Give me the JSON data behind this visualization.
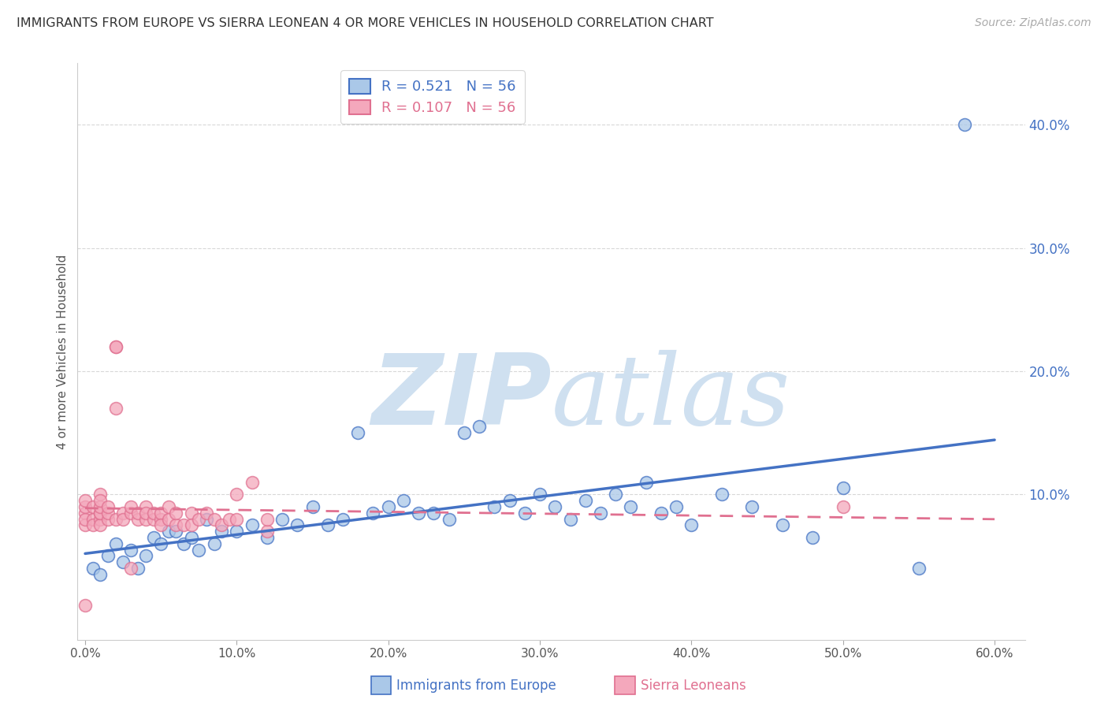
{
  "title": "IMMIGRANTS FROM EUROPE VS SIERRA LEONEAN 4 OR MORE VEHICLES IN HOUSEHOLD CORRELATION CHART",
  "source": "Source: ZipAtlas.com",
  "ylabel": "4 or more Vehicles in Household",
  "legend_label_blue": "Immigrants from Europe",
  "legend_label_pink": "Sierra Leoneans",
  "R_blue": 0.521,
  "R_pink": 0.107,
  "N_blue": 56,
  "N_pink": 56,
  "xlim": [
    -0.005,
    0.62
  ],
  "ylim": [
    -0.018,
    0.45
  ],
  "xtick_vals": [
    0.0,
    0.1,
    0.2,
    0.3,
    0.4,
    0.5,
    0.6
  ],
  "xtick_labels": [
    "0.0%",
    "10.0%",
    "20.0%",
    "30.0%",
    "40.0%",
    "50.0%",
    "60.0%"
  ],
  "ytick_vals_right": [
    0.1,
    0.2,
    0.3,
    0.4
  ],
  "ytick_labels_right": [
    "10.0%",
    "20.0%",
    "30.0%",
    "40.0%"
  ],
  "color_blue": "#aac8e8",
  "color_blue_line": "#4472c4",
  "color_blue_dark": "#4472c4",
  "color_pink": "#f4a8bc",
  "color_pink_line": "#e07090",
  "color_pink_dark": "#e07090",
  "watermark_color": "#cfe0f0",
  "background_color": "#ffffff",
  "grid_color": "#d8d8d8",
  "blue_scatter_x": [
    0.005,
    0.01,
    0.015,
    0.02,
    0.025,
    0.03,
    0.035,
    0.04,
    0.045,
    0.05,
    0.055,
    0.06,
    0.065,
    0.07,
    0.075,
    0.08,
    0.085,
    0.09,
    0.1,
    0.11,
    0.12,
    0.13,
    0.14,
    0.15,
    0.16,
    0.17,
    0.18,
    0.19,
    0.2,
    0.21,
    0.22,
    0.23,
    0.24,
    0.25,
    0.26,
    0.27,
    0.28,
    0.29,
    0.3,
    0.31,
    0.32,
    0.33,
    0.34,
    0.35,
    0.36,
    0.37,
    0.38,
    0.39,
    0.4,
    0.42,
    0.44,
    0.46,
    0.48,
    0.5,
    0.55,
    0.58
  ],
  "blue_scatter_y": [
    0.04,
    0.035,
    0.05,
    0.06,
    0.045,
    0.055,
    0.04,
    0.05,
    0.065,
    0.06,
    0.07,
    0.07,
    0.06,
    0.065,
    0.055,
    0.08,
    0.06,
    0.07,
    0.07,
    0.075,
    0.065,
    0.08,
    0.075,
    0.09,
    0.075,
    0.08,
    0.15,
    0.085,
    0.09,
    0.095,
    0.085,
    0.085,
    0.08,
    0.15,
    0.155,
    0.09,
    0.095,
    0.085,
    0.1,
    0.09,
    0.08,
    0.095,
    0.085,
    0.1,
    0.09,
    0.11,
    0.085,
    0.09,
    0.075,
    0.1,
    0.09,
    0.075,
    0.065,
    0.105,
    0.04,
    0.4
  ],
  "pink_scatter_x": [
    0.0,
    0.0,
    0.0,
    0.0,
    0.0,
    0.0,
    0.005,
    0.005,
    0.005,
    0.01,
    0.01,
    0.01,
    0.01,
    0.01,
    0.01,
    0.01,
    0.015,
    0.015,
    0.015,
    0.02,
    0.02,
    0.02,
    0.02,
    0.025,
    0.025,
    0.03,
    0.03,
    0.03,
    0.035,
    0.035,
    0.04,
    0.04,
    0.04,
    0.045,
    0.045,
    0.05,
    0.05,
    0.05,
    0.055,
    0.055,
    0.06,
    0.06,
    0.065,
    0.07,
    0.07,
    0.075,
    0.08,
    0.085,
    0.09,
    0.095,
    0.1,
    0.1,
    0.11,
    0.12,
    0.12,
    0.5
  ],
  "pink_scatter_y": [
    0.085,
    0.075,
    0.08,
    0.09,
    0.095,
    0.01,
    0.08,
    0.075,
    0.09,
    0.1,
    0.08,
    0.085,
    0.075,
    0.085,
    0.09,
    0.095,
    0.08,
    0.085,
    0.09,
    0.22,
    0.22,
    0.17,
    0.08,
    0.085,
    0.08,
    0.085,
    0.09,
    0.04,
    0.08,
    0.085,
    0.09,
    0.08,
    0.085,
    0.08,
    0.085,
    0.08,
    0.085,
    0.075,
    0.08,
    0.09,
    0.075,
    0.085,
    0.075,
    0.085,
    0.075,
    0.08,
    0.085,
    0.08,
    0.075,
    0.08,
    0.1,
    0.08,
    0.11,
    0.07,
    0.08,
    0.09
  ]
}
